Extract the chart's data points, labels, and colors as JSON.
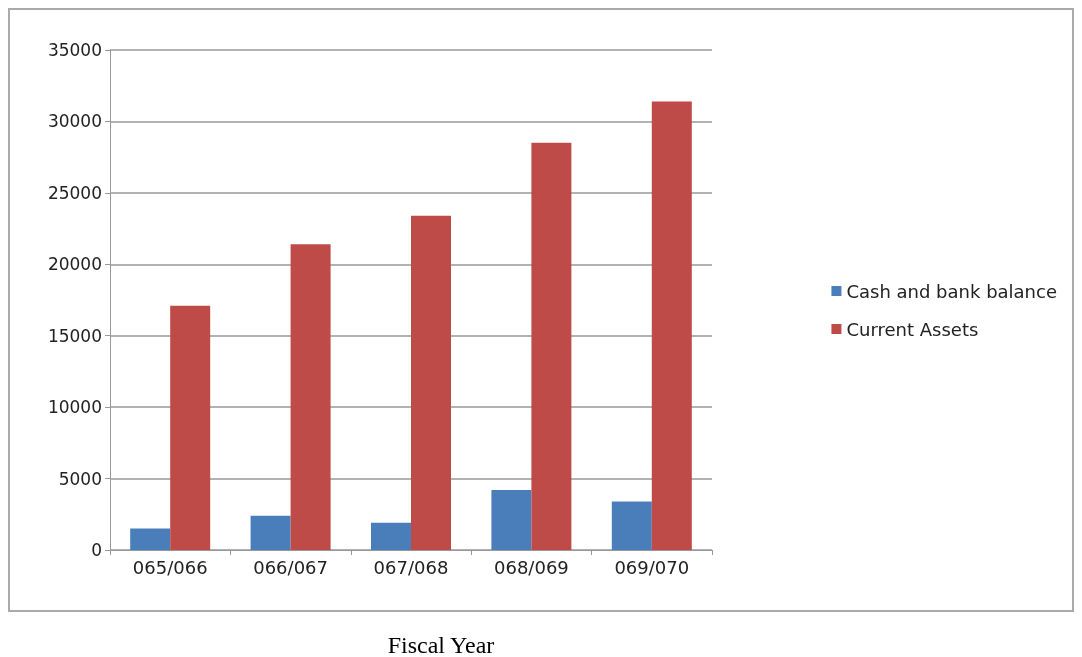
{
  "chart_data": {
    "type": "bar",
    "xlabel": "Fiscal Year",
    "categories": [
      "065/066",
      "066/067",
      "067/068",
      "068/069",
      "069/070"
    ],
    "series": [
      {
        "name": "Cash and bank balance",
        "color": "#4a7ebb",
        "values": [
          1500,
          2400,
          1900,
          4200,
          3400
        ]
      },
      {
        "name": "Current Assets",
        "color": "#be4b48",
        "values": [
          17100,
          21400,
          23400,
          28500,
          31400
        ]
      }
    ],
    "ylim": [
      0,
      35000
    ],
    "yticks": [
      0,
      5000,
      10000,
      15000,
      20000,
      25000,
      30000,
      35000
    ],
    "grid": "y",
    "legend": "right"
  }
}
